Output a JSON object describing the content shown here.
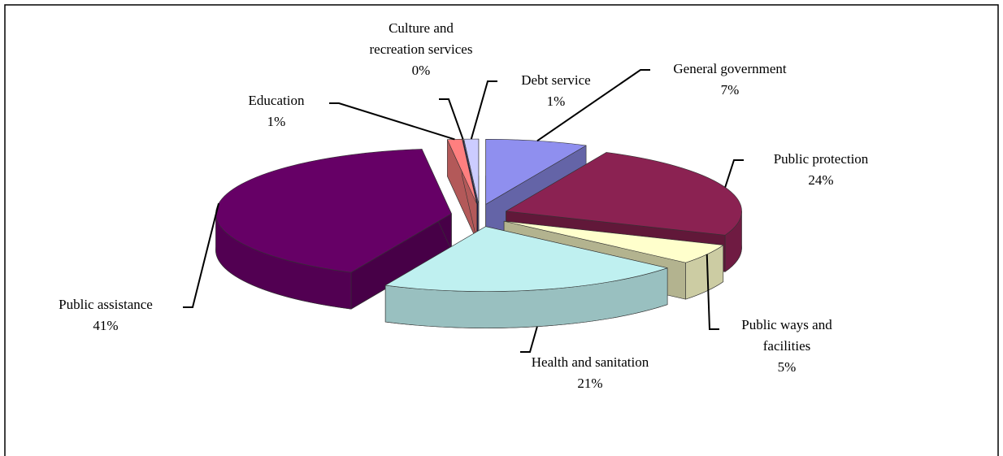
{
  "chart_data": {
    "type": "pie3d",
    "categories": [
      "General government",
      "Public protection",
      "Public ways and facilities",
      "Health and sanitation",
      "Public assistance",
      "Education",
      "Culture and recreation services",
      "Debt service"
    ],
    "values": [
      7,
      24,
      5,
      21,
      41,
      1,
      0,
      1
    ],
    "value_labels": [
      "7%",
      "24%",
      "5%",
      "21%",
      "41%",
      "1%",
      "0%",
      "1%"
    ],
    "colors": [
      "#8f8fef",
      "#8b2252",
      "#ffffcc",
      "#bff0f0",
      "#660066",
      "#ff7f7f",
      "#000080",
      "#ccccff"
    ]
  }
}
